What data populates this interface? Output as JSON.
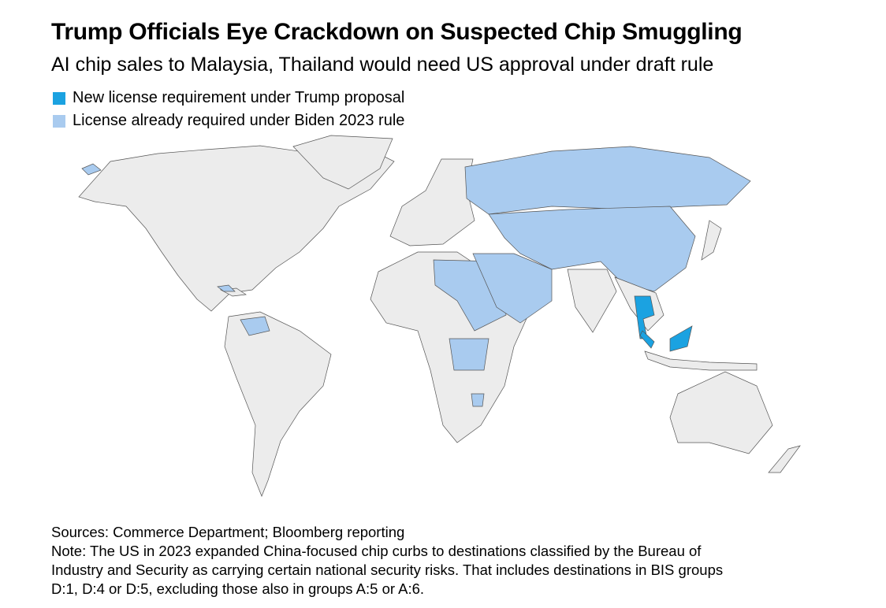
{
  "header": {
    "title": "Trump Officials Eye Crackdown on Suspected Chip Smuggling",
    "subtitle": "AI chip sales to Malaysia, Thailand would need US approval under draft rule"
  },
  "legend": [
    {
      "name": "New license requirement under Trump proposal",
      "color": "#1ba2e1"
    },
    {
      "name": "License already required under Biden 2023 rule",
      "color": "#a9cbef"
    }
  ],
  "base_color": "#ececec",
  "footer": {
    "sources": "Sources: Commerce Department; Bloomberg reporting",
    "note_lines": [
      "Note: The US in 2023 expanded China-focused chip curbs to destinations classified by the Bureau of",
      "Industry and Security as carrying certain national security risks. That includes destinations in BIS groups",
      "D:1, D:4 or D:5, excluding those also in groups A:5 or A:6."
    ]
  }
}
